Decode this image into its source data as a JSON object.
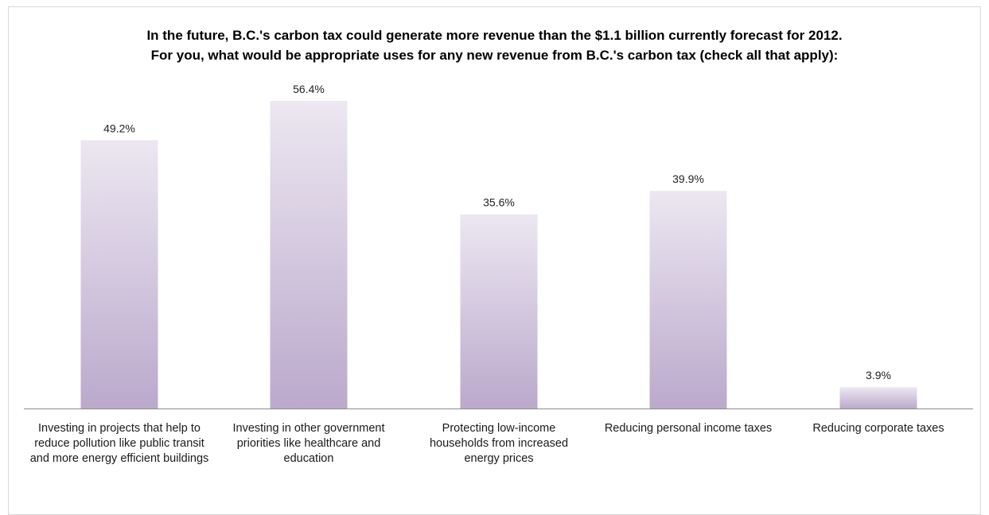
{
  "chart_data": {
    "type": "bar",
    "title": "In the future, B.C.'s carbon tax could generate more revenue than the $1.1 billion currently forecast for 2012.",
    "subtitle": "For you, what would be appropriate uses for any new revenue from B.C.'s carbon tax (check all that apply):",
    "categories": [
      "Investing in projects that help to reduce pollution like public transit and more energy efficient buildings",
      "Investing in other government priorities like healthcare and education",
      "Protecting low-income households from increased energy prices",
      "Reducing personal income taxes",
      "Reducing corporate taxes"
    ],
    "values": [
      49.2,
      56.4,
      35.6,
      39.9,
      3.9
    ],
    "value_labels": [
      "49.2%",
      "56.4%",
      "35.6%",
      "39.9%",
      "3.9%"
    ],
    "xlabel": "",
    "ylabel": "",
    "ylim": [
      0,
      56.4
    ],
    "grid": false,
    "legend": "none",
    "colors": {
      "bar_top": "#ece7f1",
      "bar_bottom": "#bba9cc",
      "axis": "#8c8c8c"
    }
  }
}
